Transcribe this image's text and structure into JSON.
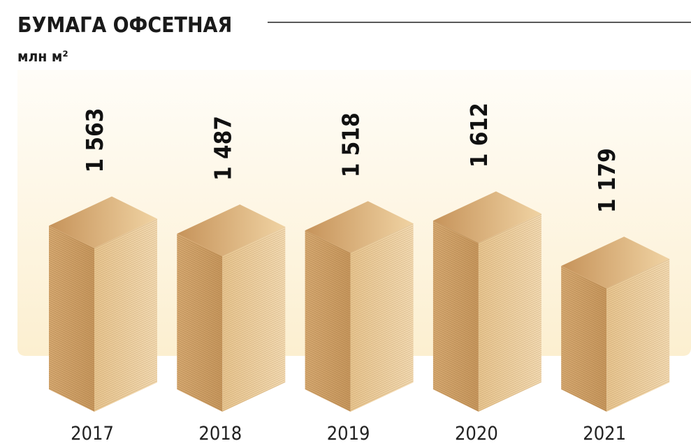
{
  "chart_data": {
    "type": "bar",
    "title": "БУМАГА ОФСЕТНАЯ",
    "subtitle": "млн м²",
    "categories": [
      "2017",
      "2018",
      "2019",
      "2020",
      "2021"
    ],
    "values": [
      1563,
      1487,
      1518,
      1612,
      1179
    ],
    "value_labels": [
      "1 563",
      "1 487",
      "1 518",
      "1 612",
      "1 179"
    ],
    "color": "#d9ad74"
  }
}
